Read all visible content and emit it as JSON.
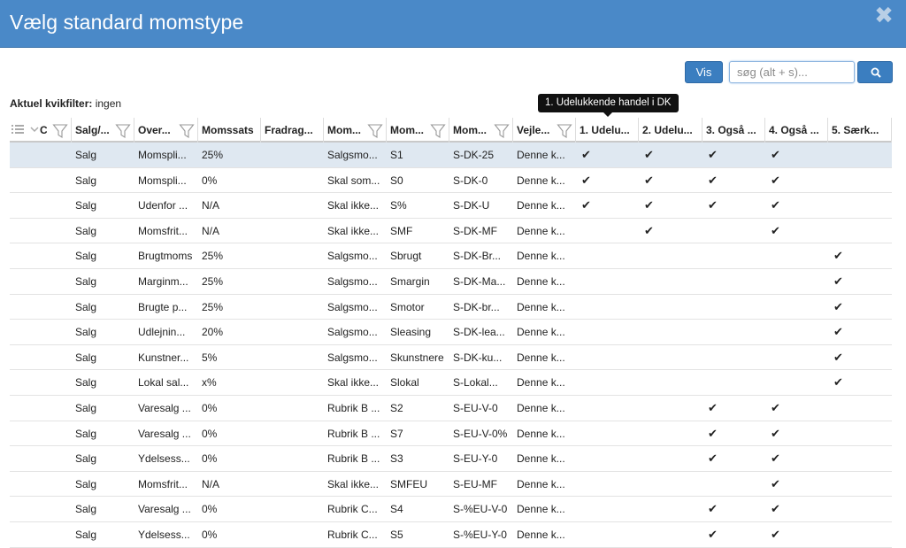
{
  "dialog": {
    "title": "Vælg standard momstype",
    "close_glyph": "✖"
  },
  "toolbar": {
    "vis_label": "Vis",
    "search_placeholder": "søg (alt + s)...",
    "search_value": ""
  },
  "quickfilter": {
    "label": "Aktuel kvikfilter:",
    "value": "ingen"
  },
  "tooltip": {
    "text": "1. Udelukkende handel i DK"
  },
  "colors": {
    "titlebar": "#4a89c8",
    "button": "#3b7ec0",
    "selected_row": "#dfe8f1"
  },
  "columns": [
    {
      "key": "c0",
      "label": "C",
      "filter": true
    },
    {
      "key": "salg",
      "label": "Salg/...",
      "filter": true
    },
    {
      "key": "over",
      "label": "Over...",
      "filter": true
    },
    {
      "key": "sats",
      "label": "Momssats",
      "filter": false
    },
    {
      "key": "fradrag",
      "label": "Fradrag...",
      "filter": false
    },
    {
      "key": "mom1",
      "label": "Mom...",
      "filter": true
    },
    {
      "key": "mom2",
      "label": "Mom...",
      "filter": true
    },
    {
      "key": "mom3",
      "label": "Mom...",
      "filter": true
    },
    {
      "key": "vejl",
      "label": "Vejle...",
      "filter": true
    },
    {
      "key": "k1",
      "label": "1. Udelu...",
      "filter": false
    },
    {
      "key": "k2",
      "label": "2. Udelu...",
      "filter": false
    },
    {
      "key": "k3",
      "label": "3. Også ...",
      "filter": false
    },
    {
      "key": "k4",
      "label": "4. Også ...",
      "filter": false
    },
    {
      "key": "k5",
      "label": "5. Særk...",
      "filter": false
    }
  ],
  "check_glyph": "✔",
  "rows": [
    {
      "salg": "Salg",
      "over": "Momspli...",
      "sats": "25%",
      "fradrag": "",
      "mom1": "Salgsmo...",
      "mom2": "S1",
      "mom3": "S-DK-25",
      "vejl": "Denne k...",
      "k1": true,
      "k2": true,
      "k3": true,
      "k4": true,
      "k5": false
    },
    {
      "salg": "Salg",
      "over": "Momspli...",
      "sats": "0%",
      "fradrag": "",
      "mom1": "Skal som...",
      "mom2": "S0",
      "mom3": "S-DK-0",
      "vejl": "Denne k...",
      "k1": true,
      "k2": true,
      "k3": true,
      "k4": true,
      "k5": false
    },
    {
      "salg": "Salg",
      "over": "Udenfor ...",
      "sats": "N/A",
      "fradrag": "",
      "mom1": "Skal ikke...",
      "mom2": "S%",
      "mom3": "S-DK-U",
      "vejl": "Denne k...",
      "k1": true,
      "k2": true,
      "k3": true,
      "k4": true,
      "k5": false
    },
    {
      "salg": "Salg",
      "over": "Momsfrit...",
      "sats": "N/A",
      "fradrag": "",
      "mom1": "Skal ikke...",
      "mom2": "SMF",
      "mom3": "S-DK-MF",
      "vejl": "Denne k...",
      "k1": false,
      "k2": true,
      "k3": false,
      "k4": true,
      "k5": false
    },
    {
      "salg": "Salg",
      "over": "Brugtmoms",
      "sats": "25%",
      "fradrag": "",
      "mom1": "Salgsmo...",
      "mom2": "Sbrugt",
      "mom3": "S-DK-Br...",
      "vejl": "Denne k...",
      "k1": false,
      "k2": false,
      "k3": false,
      "k4": false,
      "k5": true
    },
    {
      "salg": "Salg",
      "over": "Marginm...",
      "sats": "25%",
      "fradrag": "",
      "mom1": "Salgsmo...",
      "mom2": "Smargin",
      "mom3": "S-DK-Ma...",
      "vejl": "Denne k...",
      "k1": false,
      "k2": false,
      "k3": false,
      "k4": false,
      "k5": true
    },
    {
      "salg": "Salg",
      "over": "Brugte p...",
      "sats": "25%",
      "fradrag": "",
      "mom1": "Salgsmo...",
      "mom2": "Smotor",
      "mom3": "S-DK-br...",
      "vejl": "Denne k...",
      "k1": false,
      "k2": false,
      "k3": false,
      "k4": false,
      "k5": true
    },
    {
      "salg": "Salg",
      "over": "Udlejnin...",
      "sats": "20%",
      "fradrag": "",
      "mom1": "Salgsmo...",
      "mom2": "Sleasing",
      "mom3": "S-DK-lea...",
      "vejl": "Denne k...",
      "k1": false,
      "k2": false,
      "k3": false,
      "k4": false,
      "k5": true
    },
    {
      "salg": "Salg",
      "over": "Kunstner...",
      "sats": "5%",
      "fradrag": "",
      "mom1": "Salgsmo...",
      "mom2": "Skunstnere",
      "mom3": "S-DK-ku...",
      "vejl": "Denne k...",
      "k1": false,
      "k2": false,
      "k3": false,
      "k4": false,
      "k5": true
    },
    {
      "salg": "Salg",
      "over": "Lokal sal...",
      "sats": "x%",
      "fradrag": "",
      "mom1": "Skal ikke...",
      "mom2": "Slokal",
      "mom3": "S-Lokal...",
      "vejl": "Denne k...",
      "k1": false,
      "k2": false,
      "k3": false,
      "k4": false,
      "k5": true
    },
    {
      "salg": "Salg",
      "over": "Varesalg ...",
      "sats": "0%",
      "fradrag": "",
      "mom1": "Rubrik B ...",
      "mom2": "S2",
      "mom3": "S-EU-V-0",
      "vejl": "Denne k...",
      "k1": false,
      "k2": false,
      "k3": true,
      "k4": true,
      "k5": false
    },
    {
      "salg": "Salg",
      "over": "Varesalg ...",
      "sats": "0%",
      "fradrag": "",
      "mom1": "Rubrik B ...",
      "mom2": "S7",
      "mom3": "S-EU-V-0%",
      "vejl": "Denne k...",
      "k1": false,
      "k2": false,
      "k3": true,
      "k4": true,
      "k5": false
    },
    {
      "salg": "Salg",
      "over": "Ydelsess...",
      "sats": "0%",
      "fradrag": "",
      "mom1": "Rubrik B ...",
      "mom2": "S3",
      "mom3": "S-EU-Y-0",
      "vejl": "Denne k...",
      "k1": false,
      "k2": false,
      "k3": true,
      "k4": true,
      "k5": false
    },
    {
      "salg": "Salg",
      "over": "Momsfrit...",
      "sats": "N/A",
      "fradrag": "",
      "mom1": "Skal ikke...",
      "mom2": "SMFEU",
      "mom3": "S-EU-MF",
      "vejl": "Denne k...",
      "k1": false,
      "k2": false,
      "k3": false,
      "k4": true,
      "k5": false
    },
    {
      "salg": "Salg",
      "over": "Varesalg ...",
      "sats": "0%",
      "fradrag": "",
      "mom1": "Rubrik C...",
      "mom2": "S4",
      "mom3": "S-%EU-V-0",
      "vejl": "Denne k...",
      "k1": false,
      "k2": false,
      "k3": true,
      "k4": true,
      "k5": false
    },
    {
      "salg": "Salg",
      "over": "Ydelsess...",
      "sats": "0%",
      "fradrag": "",
      "mom1": "Rubrik C...",
      "mom2": "S5",
      "mom3": "S-%EU-Y-0",
      "vejl": "Denne k...",
      "k1": false,
      "k2": false,
      "k3": true,
      "k4": true,
      "k5": false
    }
  ]
}
